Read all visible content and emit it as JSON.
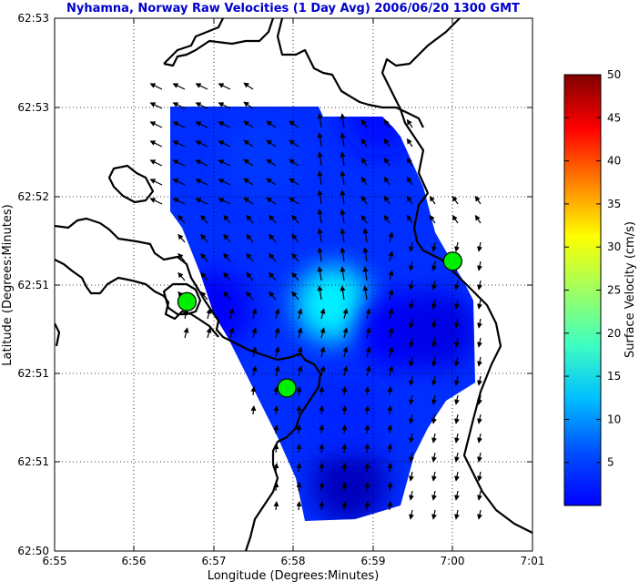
{
  "chart_data": {
    "type": "vector-field",
    "title": "Nyhamna, Norway Raw Velocities (1 Day Avg) 2006/06/20 1300 GMT",
    "xlabel": "Longitude (Degrees:Minutes)",
    "ylabel": "Latitude (Degrees:Minutes)",
    "x_ticks": [
      "6:55",
      "6:56",
      "6:57",
      "6:58",
      "6:59",
      "7:00",
      "7:01"
    ],
    "y_ticks": [
      "62:50",
      "62:51",
      "62:51",
      "62:51",
      "62:52",
      "62:53",
      "62:53"
    ],
    "xlim": [
      6.9167,
      7.0167
    ],
    "ylim": [
      62.8333,
      62.8833
    ],
    "grid": true,
    "colorbar": {
      "label": "Surface Velocity (cm/s)",
      "range": [
        0,
        50
      ],
      "ticks": [
        "5",
        "10",
        "15",
        "20",
        "25",
        "30",
        "35",
        "40",
        "45",
        "50"
      ],
      "colormap": "jet"
    },
    "stations": [
      {
        "lon": 6.9444,
        "lat": 62.8567,
        "color": "#00ee00"
      },
      {
        "lon": 6.9653,
        "lat": 62.8486,
        "color": "#00ee00"
      },
      {
        "lon": 7.0,
        "lat": 62.8605,
        "color": "#00ee00"
      }
    ],
    "speed_patches": [
      {
        "lon": 6.975,
        "lat": 62.8565,
        "speed_cm_s": 18
      },
      {
        "lon": 6.96,
        "lat": 62.87,
        "speed_cm_s": 9
      },
      {
        "lon": 6.985,
        "lat": 62.874,
        "speed_cm_s": 7
      },
      {
        "lon": 6.95,
        "lat": 62.856,
        "speed_cm_s": 6
      },
      {
        "lon": 6.988,
        "lat": 62.854,
        "speed_cm_s": 6
      },
      {
        "lon": 6.9785,
        "lat": 62.8395,
        "speed_cm_s": 3
      },
      {
        "lon": 6.997,
        "lat": 62.854,
        "speed_cm_s": 5
      },
      {
        "lon": 6.978,
        "lat": 62.846,
        "speed_cm_s": 8
      }
    ]
  }
}
